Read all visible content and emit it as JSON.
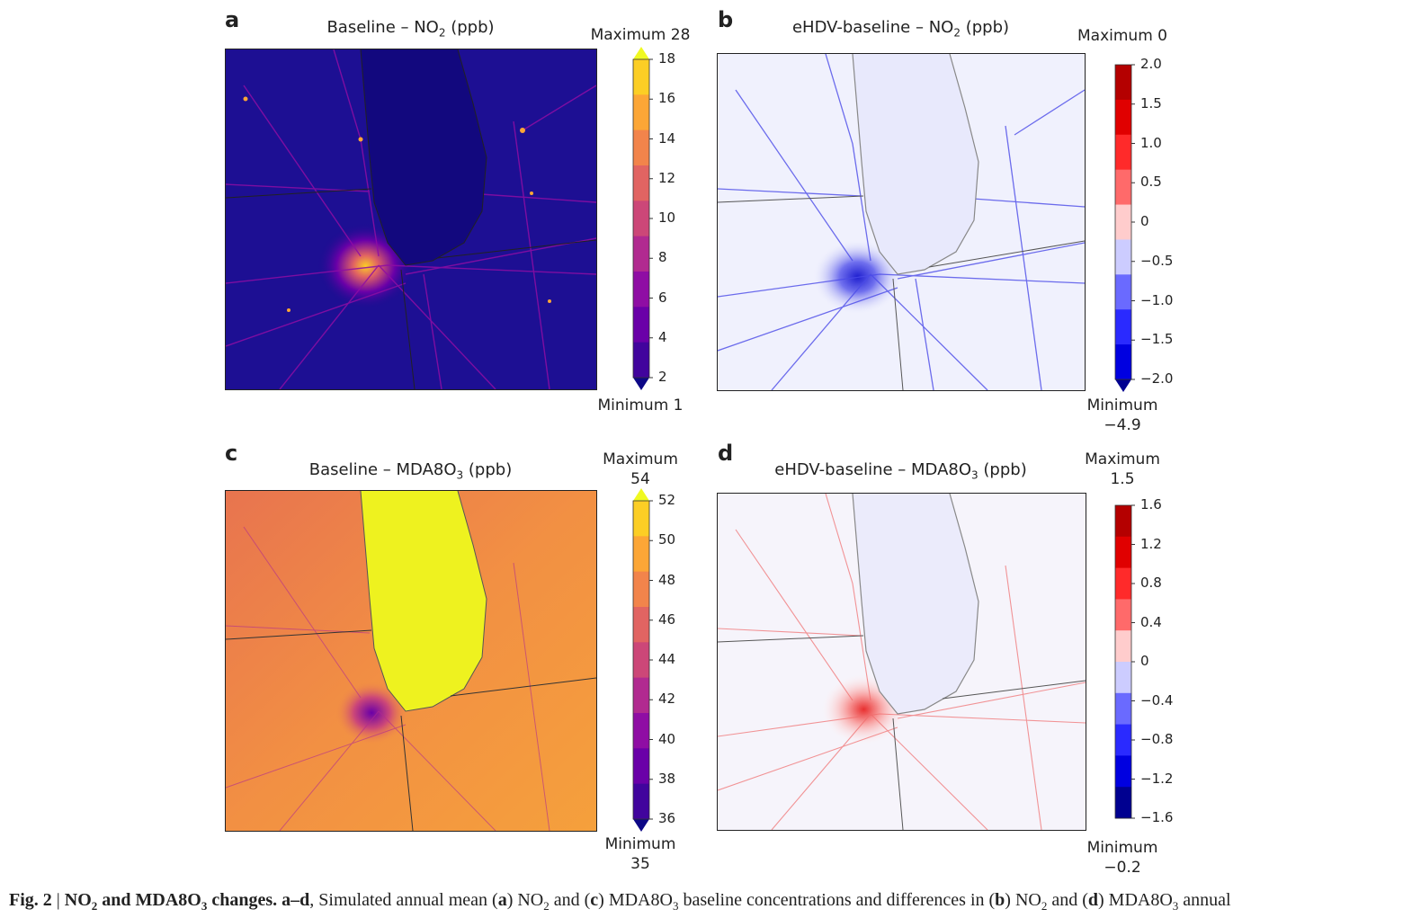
{
  "panels": [
    {
      "id": "a",
      "title_pre": "Baseline – NO",
      "title_sub": "2",
      "title_post": " (ppb)",
      "maximum": "Maximum 28",
      "minimum": "Minimum 1",
      "ticks": [
        "18",
        "16",
        "14",
        "12",
        "10",
        "8",
        "6",
        "4",
        "2"
      ],
      "colors": [
        "#0d0887",
        "#41049d",
        "#6a00a8",
        "#8f0da4",
        "#b12a90",
        "#cc4778",
        "#e16462",
        "#f2844b",
        "#fca636",
        "#fcce25",
        "#f0f921"
      ]
    },
    {
      "id": "b",
      "title_pre": "eHDV-baseline – NO",
      "title_sub": "2",
      "title_post": " (ppb)",
      "maximum": "Maximum 0",
      "minimum_line1": "Minimum",
      "minimum_line2": "−4.9",
      "ticks": [
        "2.0",
        "1.5",
        "1.0",
        "0.5",
        "0",
        "−0.5",
        "−1.0",
        "−1.5",
        "−2.0"
      ],
      "colors": [
        "#b40000",
        "#e00000",
        "#ff2a2a",
        "#ff6a6a",
        "#ffcccc",
        "#ccccff",
        "#6a6aff",
        "#2a2aff",
        "#0000e0",
        "#000090"
      ]
    },
    {
      "id": "c",
      "title_pre": "Baseline – MDA8O",
      "title_sub": "3",
      "title_post": " (ppb)",
      "maximum_line1": "Maximum",
      "maximum_line2": "54",
      "minimum_line1": "Minimum",
      "minimum_line2": "35",
      "ticks": [
        "52",
        "50",
        "48",
        "46",
        "44",
        "42",
        "40",
        "38",
        "36"
      ],
      "colors": [
        "#0d0887",
        "#41049d",
        "#6a00a8",
        "#8f0da4",
        "#b12a90",
        "#cc4778",
        "#e16462",
        "#f2844b",
        "#fca636",
        "#fcce25",
        "#f0f921"
      ]
    },
    {
      "id": "d",
      "title_pre": "eHDV-baseline – MDA8O",
      "title_sub": "3",
      "title_post": " (ppb)",
      "maximum_line1": "Maximum",
      "maximum_line2": "1.5",
      "minimum_line1": "Minimum",
      "minimum_line2": "−0.2",
      "ticks": [
        "1.6",
        "1.2",
        "0.8",
        "0.4",
        "0",
        "−0.4",
        "−0.8",
        "−1.2",
        "−1.6"
      ],
      "colors": [
        "#b40000",
        "#e00000",
        "#ff2a2a",
        "#ff6a6a",
        "#ffcccc",
        "#ccccff",
        "#6a6aff",
        "#2a2aff",
        "#0000e0",
        "#000090"
      ]
    }
  ],
  "caption": {
    "fig": "Fig. 2",
    "sep": " | ",
    "bold_pre": "NO",
    "bold_sub1": "2",
    "bold_mid": " and MDA8O",
    "bold_sub2": "3",
    "bold_post": " changes.",
    "range": " a–d",
    "text1": ", Simulated annual mean (",
    "a": "a",
    "text2": ") NO",
    "sub2": "2",
    "text3": " and (",
    "c": "c",
    "text4": ") MDA8O",
    "sub3": "3",
    "text5": " baseline concentrations and differences in (",
    "b": "b",
    "text6": ") NO",
    "sub4": "2",
    "text7": " and (",
    "d": "d",
    "text8": ") MDA8O",
    "sub5": "3",
    "text9": " annual"
  }
}
